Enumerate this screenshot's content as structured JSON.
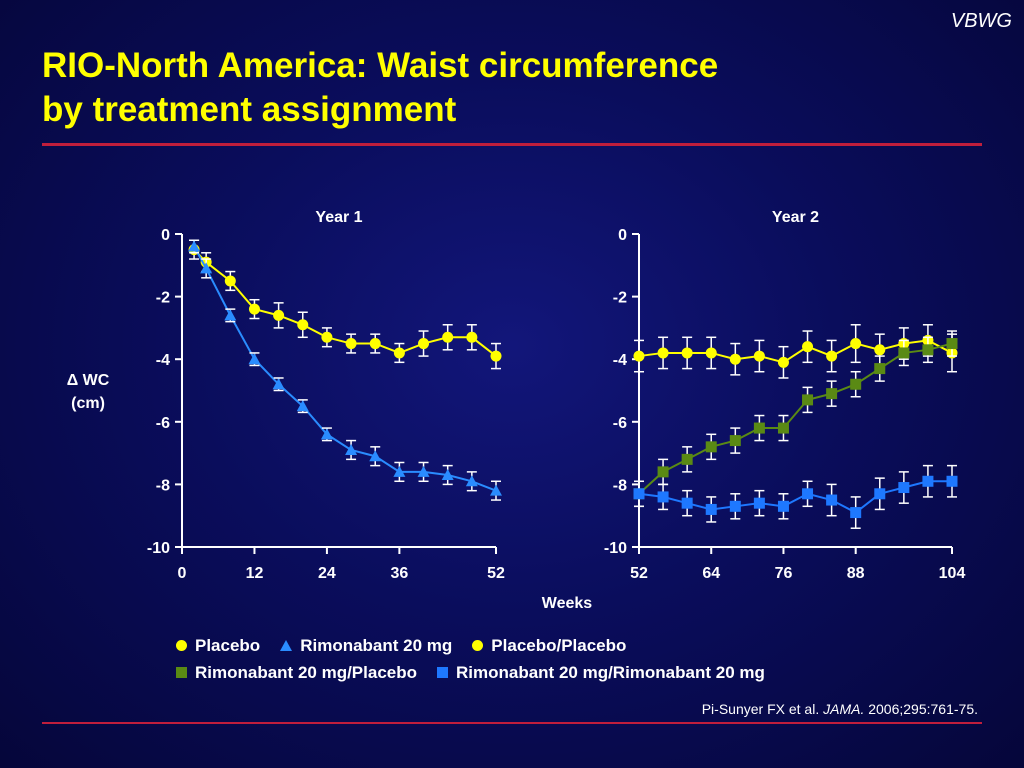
{
  "brand": "VBWG",
  "title": {
    "line1": "RIO-North America: Waist circumference",
    "line2": "by treatment assignment"
  },
  "colors": {
    "title": "#ffff00",
    "rule": "#c01e3c",
    "placebo": "#ffff00",
    "rimonabant": "#2a8cff",
    "rim_placebo": "#5a8a14",
    "rim_rim": "#1e78ff"
  },
  "ylabel": {
    "line1": "Δ WC",
    "line2": "(cm)"
  },
  "xlabel": "Weeks",
  "chart_data": [
    {
      "title": "Year 1",
      "type": "line",
      "xlim": [
        0,
        52
      ],
      "ylim": [
        -10,
        0
      ],
      "x_ticks": [
        "0",
        "12",
        "24",
        "36",
        "52"
      ],
      "x_tick_values": [
        0,
        12,
        24,
        36,
        52
      ],
      "y_ticks": [
        "0",
        "-2",
        "-4",
        "-6",
        "-8",
        "-10"
      ],
      "y_tick_values": [
        0,
        -2,
        -4,
        -6,
        -8,
        -10
      ],
      "series": [
        {
          "name": "Placebo",
          "marker": "circle",
          "color": "#ffff00",
          "x": [
            2,
            4,
            8,
            12,
            16,
            20,
            24,
            28,
            32,
            36,
            40,
            44,
            48,
            52
          ],
          "y": [
            -0.5,
            -0.9,
            -1.5,
            -2.4,
            -2.6,
            -2.9,
            -3.3,
            -3.5,
            -3.5,
            -3.8,
            -3.5,
            -3.3,
            -3.3,
            -3.9
          ],
          "err": [
            0.3,
            0.3,
            0.3,
            0.3,
            0.4,
            0.4,
            0.3,
            0.3,
            0.3,
            0.3,
            0.4,
            0.4,
            0.4,
            0.4
          ]
        },
        {
          "name": "Rimonabant 20 mg",
          "marker": "triangle",
          "color": "#2a8cff",
          "x": [
            2,
            4,
            8,
            12,
            16,
            20,
            24,
            28,
            32,
            36,
            40,
            44,
            48,
            52
          ],
          "y": [
            -0.4,
            -1.1,
            -2.6,
            -4.0,
            -4.8,
            -5.5,
            -6.4,
            -6.9,
            -7.1,
            -7.6,
            -7.6,
            -7.7,
            -7.9,
            -8.2
          ],
          "err": [
            0.2,
            0.3,
            0.2,
            0.2,
            0.2,
            0.2,
            0.2,
            0.3,
            0.3,
            0.3,
            0.3,
            0.3,
            0.3,
            0.3
          ]
        }
      ]
    },
    {
      "title": "Year 2",
      "type": "line",
      "xlim": [
        52,
        104
      ],
      "ylim": [
        -10,
        0
      ],
      "x_ticks": [
        "52",
        "64",
        "76",
        "88",
        "104"
      ],
      "x_tick_values": [
        52,
        64,
        76,
        88,
        104
      ],
      "y_ticks": [
        "0",
        "-2",
        "-4",
        "-6",
        "-8",
        "-10"
      ],
      "y_tick_values": [
        0,
        -2,
        -4,
        -6,
        -8,
        -10
      ],
      "series": [
        {
          "name": "Placebo/Placebo",
          "marker": "circle",
          "color": "#ffff00",
          "x": [
            52,
            56,
            60,
            64,
            68,
            72,
            76,
            80,
            84,
            88,
            92,
            96,
            100,
            104
          ],
          "y": [
            -3.9,
            -3.8,
            -3.8,
            -3.8,
            -4.0,
            -3.9,
            -4.1,
            -3.6,
            -3.9,
            -3.5,
            -3.7,
            -3.5,
            -3.4,
            -3.8
          ],
          "err": [
            0.5,
            0.5,
            0.5,
            0.5,
            0.5,
            0.5,
            0.5,
            0.5,
            0.5,
            0.6,
            0.5,
            0.5,
            0.5,
            0.6
          ]
        },
        {
          "name": "Rimonabant 20 mg/Placebo",
          "marker": "square",
          "color": "#5a8a14",
          "x": [
            52,
            56,
            60,
            64,
            68,
            72,
            76,
            80,
            84,
            88,
            92,
            96,
            100,
            104
          ],
          "y": [
            -8.3,
            -7.6,
            -7.2,
            -6.8,
            -6.6,
            -6.2,
            -6.2,
            -5.3,
            -5.1,
            -4.8,
            -4.3,
            -3.8,
            -3.7,
            -3.5
          ],
          "err": [
            0.4,
            0.4,
            0.4,
            0.4,
            0.4,
            0.4,
            0.4,
            0.4,
            0.4,
            0.4,
            0.4,
            0.4,
            0.4,
            0.4
          ]
        },
        {
          "name": "Rimonabant 20 mg/Rimonabant 20 mg",
          "marker": "square",
          "color": "#1e78ff",
          "x": [
            52,
            56,
            60,
            64,
            68,
            72,
            76,
            80,
            84,
            88,
            92,
            96,
            100,
            104
          ],
          "y": [
            -8.3,
            -8.4,
            -8.6,
            -8.8,
            -8.7,
            -8.6,
            -8.7,
            -8.3,
            -8.5,
            -8.9,
            -8.3,
            -8.1,
            -7.9,
            -7.9
          ],
          "err": [
            0.4,
            0.4,
            0.4,
            0.4,
            0.4,
            0.4,
            0.4,
            0.4,
            0.5,
            0.5,
            0.5,
            0.5,
            0.5,
            0.5
          ]
        }
      ]
    }
  ],
  "legend": [
    {
      "label": "Placebo",
      "marker": "circle",
      "color": "#ffff00"
    },
    {
      "label": "Rimonabant 20 mg",
      "marker": "triangle",
      "color": "#2a8cff"
    },
    {
      "label": "Placebo/Placebo",
      "marker": "circle",
      "color": "#ffff00"
    },
    {
      "label": "Rimonabant 20 mg/Placebo",
      "marker": "square",
      "color": "#5a8a14"
    },
    {
      "label": "Rimonabant 20 mg/Rimonabant 20 mg",
      "marker": "square",
      "color": "#1e78ff"
    }
  ],
  "citation": {
    "authors": "Pi-Sunyer FX et al. ",
    "journal": "JAMA.",
    "details": " 2006;295:761-75."
  }
}
